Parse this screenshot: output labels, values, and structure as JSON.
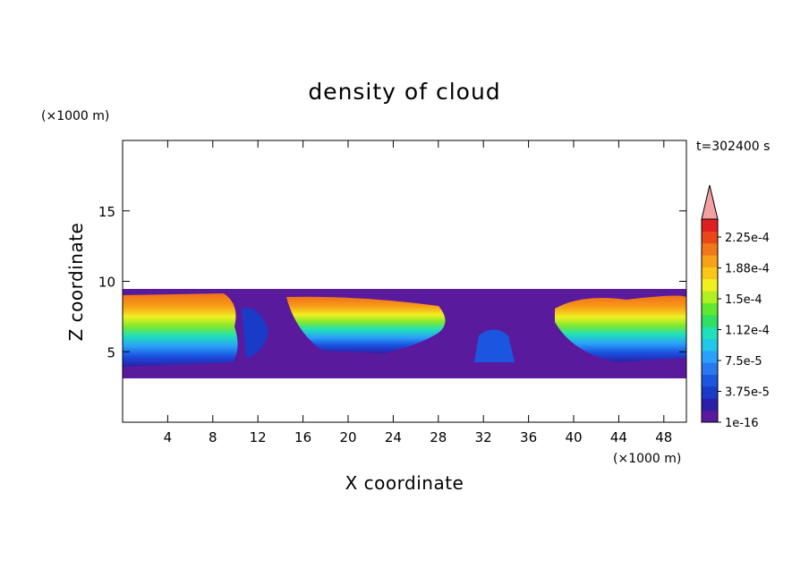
{
  "chart_data": {
    "type": "heatmap",
    "title": "density of cloud",
    "xlabel": "X coordinate",
    "ylabel": "Z coordinate",
    "x_unit": "(×1000 m)",
    "y_unit": "(×1000 m)",
    "time_label": "t=302400 s",
    "xlim": [
      0,
      50
    ],
    "ylim": [
      0,
      20
    ],
    "x_ticks": [
      "4",
      "8",
      "12",
      "16",
      "20",
      "24",
      "28",
      "32",
      "36",
      "40",
      "44",
      "48"
    ],
    "y_ticks": [
      "5",
      "10",
      "15"
    ],
    "cloud_layer_z_range": [
      3.5,
      9.5
    ],
    "colorbar": {
      "labels": [
        "1e-16",
        "3.75e-5",
        "7.5e-5",
        "1.12e-4",
        "1.5e-4",
        "1.88e-4",
        "2.25e-4"
      ],
      "colors": [
        "#5a1a9e",
        "#2a1fa8",
        "#1a3ac8",
        "#1a56e0",
        "#2a78f0",
        "#2aa0f8",
        "#20c8e8",
        "#20e0b8",
        "#30e060",
        "#60e830",
        "#b0f020",
        "#f0f020",
        "#f8c818",
        "#f8a018",
        "#f07818",
        "#e84818",
        "#e02020"
      ],
      "extend_color": "#f4a0a0"
    }
  }
}
